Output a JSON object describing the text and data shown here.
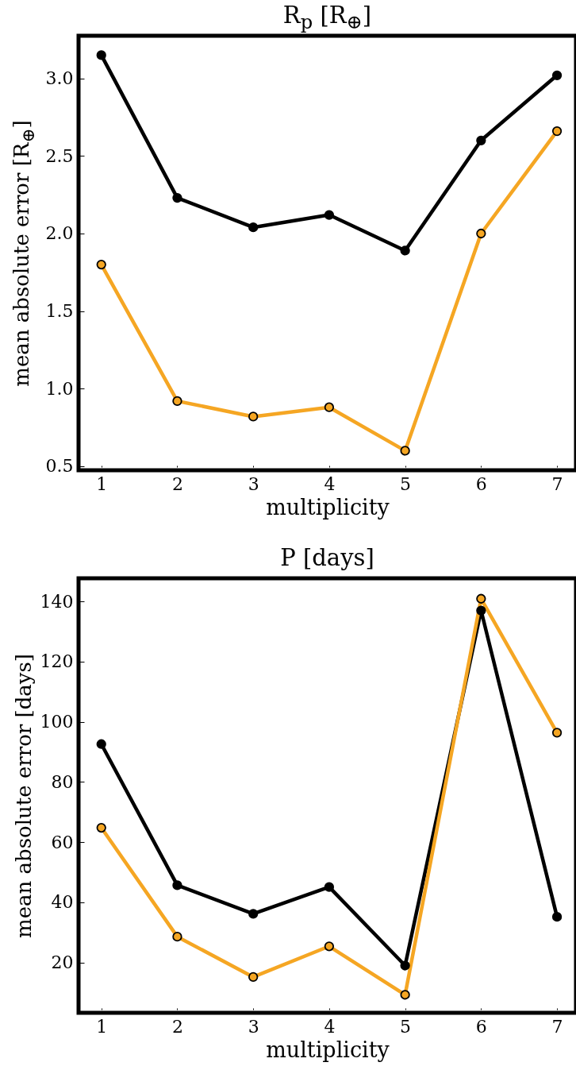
{
  "chart_data": [
    {
      "type": "line",
      "title": "R$_{p}$ [R$_{⊕}$]",
      "xlabel": "multiplicity",
      "ylabel": "mean absolute error [R$_{⊕}$]",
      "x": [
        1,
        2,
        3,
        4,
        5,
        6,
        7
      ],
      "xlim": [
        0.7,
        7.25
      ],
      "xticks": [
        1,
        2,
        3,
        4,
        5,
        6,
        7
      ],
      "ylim": [
        0.474,
        3.275
      ],
      "yticks": [
        0.5,
        {
          "value": 1,
          "label": "1.0"
        },
        1.5,
        {
          "value": 2,
          "label": "2.0"
        },
        2.5,
        {
          "value": 3,
          "label": "3.0"
        }
      ],
      "marker": "circle",
      "grid": false,
      "legend": false,
      "series": [
        {
          "color": "#000000",
          "values": [
            3.15,
            2.23,
            2.04,
            2.12,
            1.89,
            2.6,
            3.02
          ]
        },
        {
          "color": "#f5a623",
          "values": [
            1.8,
            0.92,
            0.82,
            0.88,
            0.6,
            2.0,
            2.66
          ]
        }
      ]
    },
    {
      "type": "line",
      "title": "P [days]",
      "xlabel": "multiplicity",
      "ylabel": "mean absolute error [days]",
      "x": [
        1,
        2,
        3,
        4,
        5,
        6,
        7
      ],
      "xlim": [
        0.7,
        7.25
      ],
      "xticks": [
        1,
        2,
        3,
        4,
        5,
        6,
        7
      ],
      "ylim": [
        3.3,
        147.7
      ],
      "yticks": [
        20,
        40,
        60,
        80,
        100,
        120,
        140
      ],
      "marker": "circle",
      "grid": false,
      "legend": false,
      "series": [
        {
          "color": "#000000",
          "values": [
            92.6,
            45.7,
            36.2,
            45.1,
            19,
            137,
            35.2
          ]
        },
        {
          "color": "#f5a623",
          "values": [
            64.8,
            28.6,
            15.2,
            25.4,
            9.3,
            140.9,
            96.4
          ]
        }
      ]
    }
  ]
}
